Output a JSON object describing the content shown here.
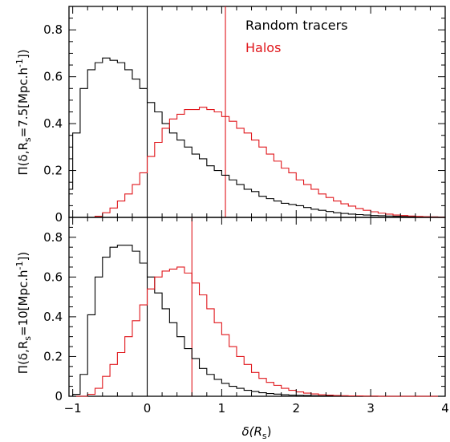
{
  "chart_data": [
    {
      "type": "line",
      "panel": "top",
      "ylabel": "Π(δ,R",
      "ylabel_sub": "s",
      "ylabel_rest": "=7.5[Mpc.h",
      "ylabel_sup": "-1",
      "ylabel_end": "])",
      "xlim": [
        -1.05,
        4.0
      ],
      "ylim": [
        0,
        0.9
      ],
      "yticks": [
        0,
        0.2,
        0.4,
        0.6,
        0.8
      ],
      "ytick_labels": [
        "0",
        "0.2",
        "0.4",
        "0.6",
        "0.8"
      ],
      "legend": [
        {
          "label": "Random tracers",
          "color": "#000000"
        },
        {
          "label": "Halos",
          "color": "#e0161b"
        }
      ],
      "legend_position": "top-right",
      "vlines": [
        {
          "x": 0.0,
          "color": "#000000"
        },
        {
          "x": 1.05,
          "color": "#e0161b"
        }
      ],
      "series": [
        {
          "color": "#000000",
          "step": 0.1,
          "x": [
            -1.05,
            -0.95,
            -0.85,
            -0.75,
            -0.65,
            -0.55,
            -0.45,
            -0.35,
            -0.25,
            -0.15,
            -0.05,
            0.05,
            0.15,
            0.25,
            0.35,
            0.45,
            0.55,
            0.65,
            0.75,
            0.85,
            0.95,
            1.05,
            1.15,
            1.25,
            1.35,
            1.45,
            1.55,
            1.65,
            1.75,
            1.85,
            1.95,
            2.05,
            2.15,
            2.25,
            2.35,
            2.45,
            2.55,
            2.65,
            2.75,
            2.85,
            2.95,
            3.05,
            3.15,
            3.25,
            3.35,
            3.45,
            3.55,
            3.65,
            3.75,
            3.85,
            3.95
          ],
          "y": [
            0.12,
            0.36,
            0.55,
            0.63,
            0.66,
            0.68,
            0.67,
            0.66,
            0.63,
            0.59,
            0.55,
            0.49,
            0.45,
            0.4,
            0.36,
            0.33,
            0.3,
            0.27,
            0.25,
            0.22,
            0.2,
            0.18,
            0.16,
            0.14,
            0.12,
            0.11,
            0.09,
            0.08,
            0.07,
            0.06,
            0.055,
            0.05,
            0.042,
            0.035,
            0.03,
            0.025,
            0.02,
            0.017,
            0.014,
            0.012,
            0.01,
            0.008,
            0.007,
            0.006,
            0.005,
            0.004,
            0.003,
            0.003,
            0.002,
            0.002,
            0.001
          ]
        },
        {
          "color": "#e0161b",
          "step": 0.1,
          "x": [
            -1.05,
            -0.95,
            -0.85,
            -0.75,
            -0.65,
            -0.55,
            -0.45,
            -0.35,
            -0.25,
            -0.15,
            -0.05,
            0.05,
            0.15,
            0.25,
            0.35,
            0.45,
            0.55,
            0.65,
            0.75,
            0.85,
            0.95,
            1.05,
            1.15,
            1.25,
            1.35,
            1.45,
            1.55,
            1.65,
            1.75,
            1.85,
            1.95,
            2.05,
            2.15,
            2.25,
            2.35,
            2.45,
            2.55,
            2.65,
            2.75,
            2.85,
            2.95,
            3.05,
            3.15,
            3.25,
            3.35,
            3.45,
            3.55,
            3.65,
            3.75,
            3.85,
            3.95
          ],
          "y": [
            0,
            0,
            0,
            0,
            0.005,
            0.02,
            0.04,
            0.07,
            0.1,
            0.14,
            0.19,
            0.26,
            0.32,
            0.38,
            0.42,
            0.44,
            0.46,
            0.46,
            0.47,
            0.46,
            0.45,
            0.43,
            0.41,
            0.38,
            0.36,
            0.33,
            0.3,
            0.27,
            0.24,
            0.21,
            0.19,
            0.16,
            0.14,
            0.12,
            0.1,
            0.085,
            0.07,
            0.058,
            0.048,
            0.038,
            0.03,
            0.024,
            0.018,
            0.014,
            0.01,
            0.008,
            0.006,
            0.004,
            0.003,
            0.002,
            0.001
          ]
        }
      ]
    },
    {
      "type": "line",
      "panel": "bottom",
      "xlabel": "δ(R",
      "xlabel_sub": "s",
      "xlabel_end": ")",
      "ylabel": "Π(δ,R",
      "ylabel_sub": "s",
      "ylabel_rest": "=10[Mpc.h",
      "ylabel_sup": "-1",
      "ylabel_end": "])",
      "xlim": [
        -1.05,
        4.0
      ],
      "ylim": [
        0,
        0.9
      ],
      "xticks": [
        -1,
        0,
        1,
        2,
        3,
        4
      ],
      "xtick_labels": [
        "−1",
        "0",
        "1",
        "2",
        "3",
        "4"
      ],
      "yticks": [
        0,
        0.2,
        0.4,
        0.6,
        0.8
      ],
      "ytick_labels": [
        "0",
        "0.2",
        "0.4",
        "0.6",
        "0.8"
      ],
      "vlines": [
        {
          "x": 0.0,
          "color": "#000000"
        },
        {
          "x": 0.6,
          "color": "#e0161b"
        }
      ],
      "series": [
        {
          "color": "#000000",
          "step": 0.1,
          "x": [
            -1.05,
            -0.95,
            -0.85,
            -0.75,
            -0.65,
            -0.55,
            -0.45,
            -0.35,
            -0.25,
            -0.15,
            -0.05,
            0.05,
            0.15,
            0.25,
            0.35,
            0.45,
            0.55,
            0.65,
            0.75,
            0.85,
            0.95,
            1.05,
            1.15,
            1.25,
            1.35,
            1.45,
            1.55,
            1.65,
            1.75,
            1.85,
            1.95,
            2.05,
            2.15,
            2.25,
            2.35,
            2.45,
            2.55,
            2.65,
            2.75,
            2.85,
            2.95,
            3.05,
            3.15,
            3.25,
            3.35,
            3.45,
            3.55,
            3.65,
            3.75,
            3.85,
            3.95
          ],
          "y": [
            0,
            0.01,
            0.11,
            0.41,
            0.6,
            0.7,
            0.75,
            0.76,
            0.76,
            0.73,
            0.67,
            0.6,
            0.52,
            0.44,
            0.37,
            0.3,
            0.24,
            0.19,
            0.14,
            0.11,
            0.085,
            0.065,
            0.05,
            0.04,
            0.03,
            0.024,
            0.018,
            0.014,
            0.011,
            0.008,
            0.006,
            0.005,
            0.004,
            0.003,
            0.002,
            0.002,
            0.001,
            0.001,
            0.001,
            0,
            0,
            0,
            0,
            0,
            0,
            0,
            0,
            0,
            0,
            0,
            0
          ]
        },
        {
          "color": "#e0161b",
          "step": 0.1,
          "x": [
            -1.05,
            -0.95,
            -0.85,
            -0.75,
            -0.65,
            -0.55,
            -0.45,
            -0.35,
            -0.25,
            -0.15,
            -0.05,
            0.05,
            0.15,
            0.25,
            0.35,
            0.45,
            0.55,
            0.65,
            0.75,
            0.85,
            0.95,
            1.05,
            1.15,
            1.25,
            1.35,
            1.45,
            1.55,
            1.65,
            1.75,
            1.85,
            1.95,
            2.05,
            2.15,
            2.25,
            2.35,
            2.45,
            2.55,
            2.65,
            2.75,
            2.85,
            2.95,
            3.05,
            3.15,
            3.25,
            3.35,
            3.45,
            3.55,
            3.65,
            3.75,
            3.85,
            3.95
          ],
          "y": [
            0,
            0,
            0,
            0.01,
            0.04,
            0.1,
            0.16,
            0.22,
            0.3,
            0.38,
            0.46,
            0.54,
            0.6,
            0.63,
            0.64,
            0.65,
            0.62,
            0.57,
            0.51,
            0.44,
            0.37,
            0.31,
            0.25,
            0.2,
            0.16,
            0.12,
            0.09,
            0.07,
            0.055,
            0.04,
            0.03,
            0.022,
            0.016,
            0.012,
            0.008,
            0.006,
            0.004,
            0.003,
            0.002,
            0.002,
            0.001,
            0.001,
            0,
            0,
            0,
            0,
            0,
            0,
            0,
            0,
            0
          ]
        }
      ]
    }
  ]
}
